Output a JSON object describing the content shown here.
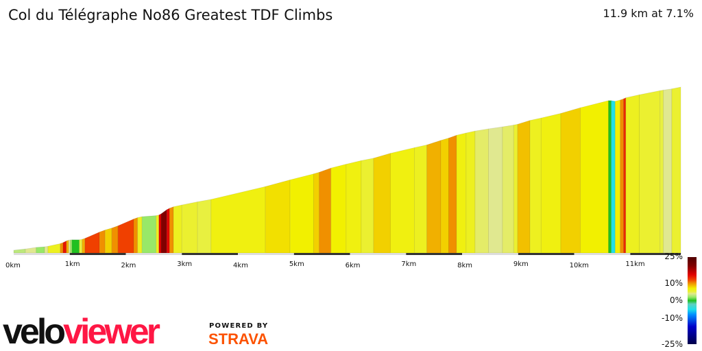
{
  "header": {
    "title": "Col du Télégraphe No86 Greatest TDF Climbs",
    "summary": "11.9 km at 7.1%"
  },
  "chart_data": {
    "type": "area",
    "title": "Col du Télégraphe No86 Greatest TDF Climbs",
    "xlabel": "",
    "ylabel": "",
    "xlim": [
      0,
      11.9
    ],
    "x_ticks": [
      "0km",
      "1km",
      "2km",
      "3km",
      "4km",
      "5km",
      "6km",
      "7km",
      "8km",
      "9km",
      "10km",
      "11km"
    ],
    "km_breaks": [
      0,
      0.21,
      0.4,
      0.55,
      0.61,
      0.83,
      0.88,
      0.94,
      0.98,
      1.01,
      1.04,
      1.17,
      1.22,
      1.27,
      1.53,
      1.63,
      1.75,
      1.86,
      2.14,
      2.21,
      2.29,
      2.54,
      2.59,
      2.63,
      2.73,
      2.78,
      2.85,
      3.0,
      3.28,
      3.52,
      4.49,
      4.93,
      5.35,
      5.45,
      5.66,
      5.93,
      6.2,
      6.42,
      6.72,
      7.15,
      7.37,
      7.62,
      7.76,
      7.9,
      8.07,
      8.23,
      8.47,
      8.72,
      8.92,
      8.99,
      9.21,
      9.41,
      9.76,
      10.11,
      10.61,
      10.66,
      10.73,
      10.82,
      10.88,
      10.92,
      11.16,
      11.53,
      11.59,
      11.74,
      11.9
    ],
    "gradients": [
      3,
      4,
      2,
      4,
      6,
      10,
      14,
      9,
      4,
      2,
      0,
      5,
      9,
      12,
      10,
      8,
      10,
      12,
      10,
      6,
      2,
      6,
      15,
      20,
      15,
      10,
      6,
      5.5,
      5,
      6.5,
      7.5,
      7,
      8,
      10,
      7,
      6.5,
      5.5,
      8,
      6.5,
      6,
      9,
      8,
      10,
      6.5,
      6,
      4.5,
      4,
      4.5,
      5.5,
      8.5,
      6,
      6.5,
      8,
      7,
      0,
      -5,
      7,
      10,
      13,
      6,
      5.5,
      5,
      4,
      5.5
    ],
    "legend": {
      "title": "",
      "labels": [
        "25%",
        "10%",
        "0%",
        "-10%",
        "-25%"
      ],
      "values": [
        25,
        10,
        0,
        -10,
        -25
      ]
    },
    "color_scale": [
      [
        -25,
        "#00004a"
      ],
      [
        -15,
        "#0000c8"
      ],
      [
        -8,
        "#0090ff"
      ],
      [
        -5,
        "#20e0e8"
      ],
      [
        -2,
        "#60d0c0"
      ],
      [
        0,
        "#20c020"
      ],
      [
        2,
        "#98e868"
      ],
      [
        4,
        "#e0e890"
      ],
      [
        5,
        "#e8f040"
      ],
      [
        7,
        "#f2f000"
      ],
      [
        8,
        "#f2d000"
      ],
      [
        10,
        "#f09000"
      ],
      [
        12,
        "#f04000"
      ],
      [
        15,
        "#e00000"
      ],
      [
        20,
        "#800000"
      ],
      [
        25,
        "#500000"
      ]
    ]
  },
  "branding": {
    "logo_black": "velo",
    "logo_red": "viewer",
    "powered_by": "POWERED BY",
    "strava": "STRAVA"
  }
}
